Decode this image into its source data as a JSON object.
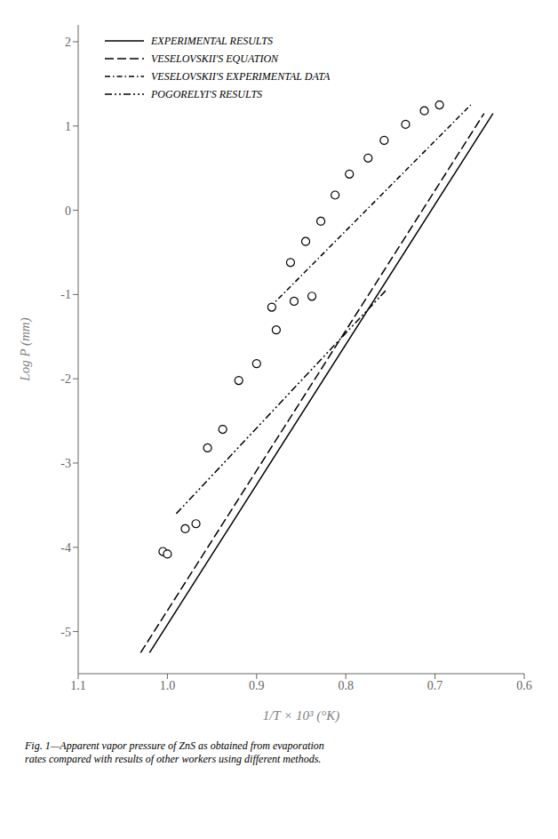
{
  "chart_data": {
    "type": "line",
    "xlabel": "1/T × 10³ (°K)",
    "ylabel": "Log P (mm)",
    "annotations": [
      "Fig. 1—Apparent vapor pressure of ZnS as obtained from evaporation\nrates compared with results of other workers using different methods."
    ],
    "xlim": [
      1.1,
      0.6
    ],
    "xticks": [
      1.1,
      {
        "value": 1.0,
        "label": "1.0"
      },
      0.9,
      0.8,
      0.7,
      0.6
    ],
    "ylim": [
      -5.5,
      2.2
    ],
    "yticks": [
      2,
      1,
      0,
      -1,
      -2,
      -3,
      -4,
      -5
    ],
    "grid": false,
    "legend": "upper left",
    "series": [
      {
        "name": "EXPERIMENTAL RESULTS",
        "type": "line",
        "line_style": "solid",
        "color": "#000000",
        "x": [
          1.02,
          0.635
        ],
        "values": [
          -5.25,
          1.15
        ]
      },
      {
        "name": "VESELOVSKII'S EQUATION",
        "type": "line",
        "line_style": "dashed",
        "color": "#000000",
        "x": [
          1.03,
          0.645
        ],
        "values": [
          -5.25,
          1.15
        ]
      },
      {
        "name": "VESELOVSKII'S EXPERIMENTAL DATA",
        "type": "line",
        "line_style": "dashdot",
        "color": "#000000",
        "x": [
          0.885,
          0.66
        ],
        "values": [
          -1.15,
          1.25
        ]
      },
      {
        "name": "POGORELYI'S RESULTS",
        "type": "line",
        "line_style": "dashdotdot",
        "color": "#000000",
        "x": [
          0.99,
          0.755
        ],
        "values": [
          -3.6,
          -0.95
        ]
      },
      {
        "type": "scatter",
        "marker": "o",
        "color": "#000000",
        "x": [
          1.005,
          1.0,
          0.98,
          0.968,
          0.955,
          0.938,
          0.92,
          0.9,
          0.878,
          0.858,
          0.838
        ],
        "values": [
          -4.05,
          -4.08,
          -3.78,
          -3.72,
          -2.82,
          -2.6,
          -2.02,
          -1.82,
          -1.42,
          -1.08,
          -1.02
        ]
      },
      {
        "type": "scatter",
        "marker": "o",
        "color": "#000000",
        "x": [
          0.883,
          0.862,
          0.845,
          0.828,
          0.812,
          0.796,
          0.775,
          0.757,
          0.733,
          0.712,
          0.695
        ],
        "values": [
          -1.15,
          -0.62,
          -0.37,
          -0.13,
          0.18,
          0.43,
          0.62,
          0.83,
          1.02,
          1.18,
          1.25
        ]
      }
    ]
  }
}
